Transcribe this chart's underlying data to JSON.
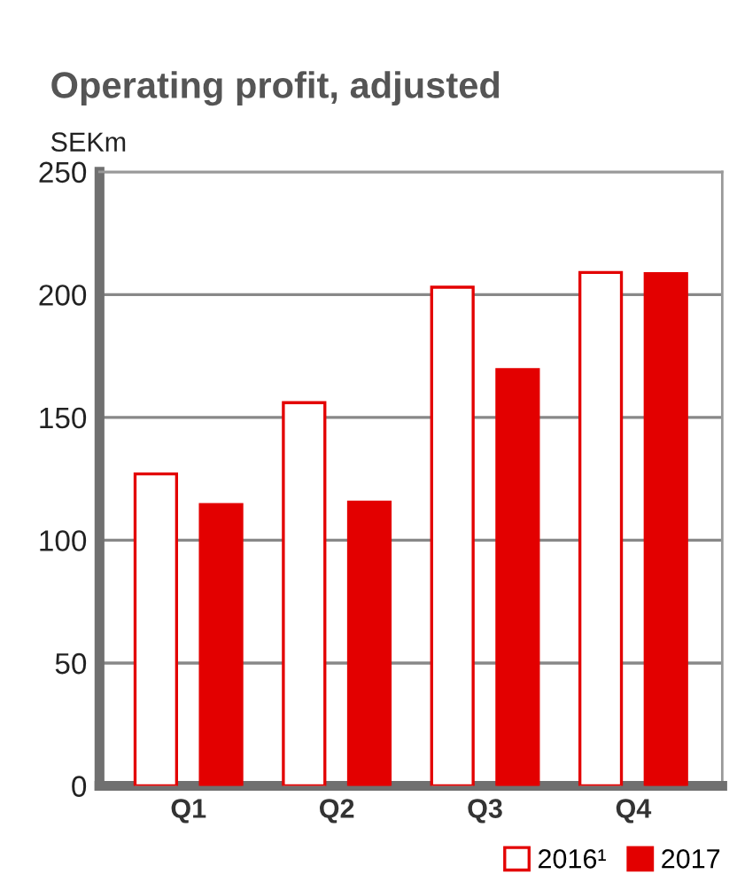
{
  "chart_data": {
    "type": "bar",
    "title": "Operating profit, adjusted",
    "ylabel": "SEKm",
    "categories": [
      "Q1",
      "Q2",
      "Q3",
      "Q4"
    ],
    "series": [
      {
        "name": "2016¹",
        "color": "#ffffff",
        "values": [
          127,
          156,
          203,
          209
        ]
      },
      {
        "name": "2017",
        "color": "#e30000",
        "values": [
          114.5,
          115.5,
          169.5,
          208.5
        ]
      }
    ],
    "ylim": [
      0,
      250
    ],
    "yticks": [
      0,
      50,
      100,
      150,
      200,
      250
    ],
    "grid": "y",
    "legend": "bottom right"
  }
}
